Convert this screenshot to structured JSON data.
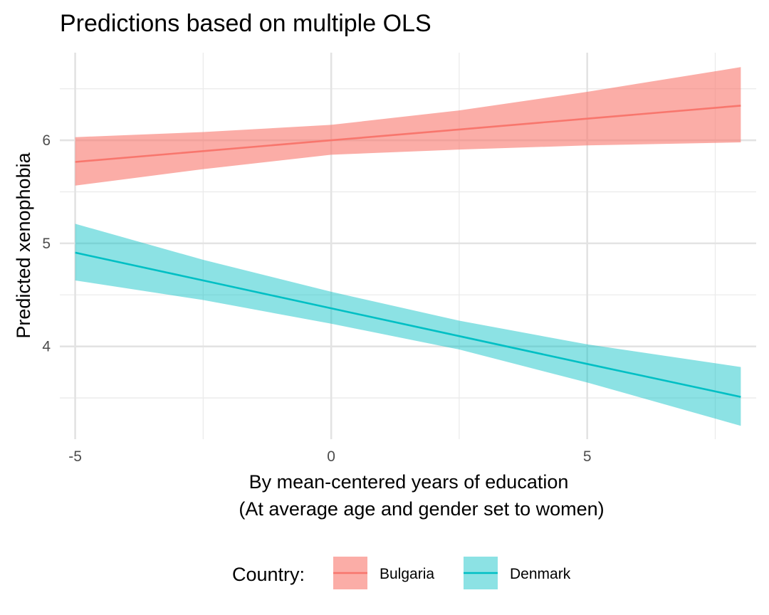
{
  "chart_data": {
    "type": "line",
    "title": "Predictions based on multiple OLS",
    "xlabel": "By mean-centered years of education",
    "xlabel_sub": "(At average age and gender set to women)",
    "ylabel": "Predicted xenophobia",
    "xlim": [
      -5.3,
      8.3
    ],
    "ylim": [
      3.1,
      6.85
    ],
    "x_ticks": [
      -5,
      0,
      5
    ],
    "x_tick_labels": [
      "-5",
      "0",
      "5"
    ],
    "x_minor_ticks": [
      -2.5,
      2.5,
      7.5
    ],
    "y_ticks": [
      4,
      5,
      6
    ],
    "y_tick_labels": [
      "4",
      "5",
      "6"
    ],
    "y_minor_ticks": [
      3.5,
      4.5,
      5.5,
      6.5
    ],
    "grid": true,
    "legend": {
      "title": "Country:",
      "position": "bottom"
    },
    "series": [
      {
        "name": "Bulgaria",
        "color": "#F8766D",
        "x": [
          -5,
          -2.5,
          0,
          2.5,
          5,
          8
        ],
        "y": [
          5.79,
          5.895,
          6.0,
          6.105,
          6.21,
          6.336
        ],
        "lower": [
          5.56,
          5.72,
          5.86,
          5.91,
          5.95,
          5.98
        ],
        "upper": [
          6.03,
          6.08,
          6.15,
          6.29,
          6.47,
          6.71
        ]
      },
      {
        "name": "Denmark",
        "color": "#00BFC4",
        "x": [
          -5,
          -2.5,
          0,
          2.5,
          5,
          8
        ],
        "y": [
          4.91,
          4.64,
          4.37,
          4.1,
          3.83,
          3.51
        ],
        "lower": [
          4.64,
          4.45,
          4.22,
          3.97,
          3.65,
          3.23
        ],
        "upper": [
          5.19,
          4.84,
          4.53,
          4.25,
          4.02,
          3.8
        ]
      }
    ]
  }
}
